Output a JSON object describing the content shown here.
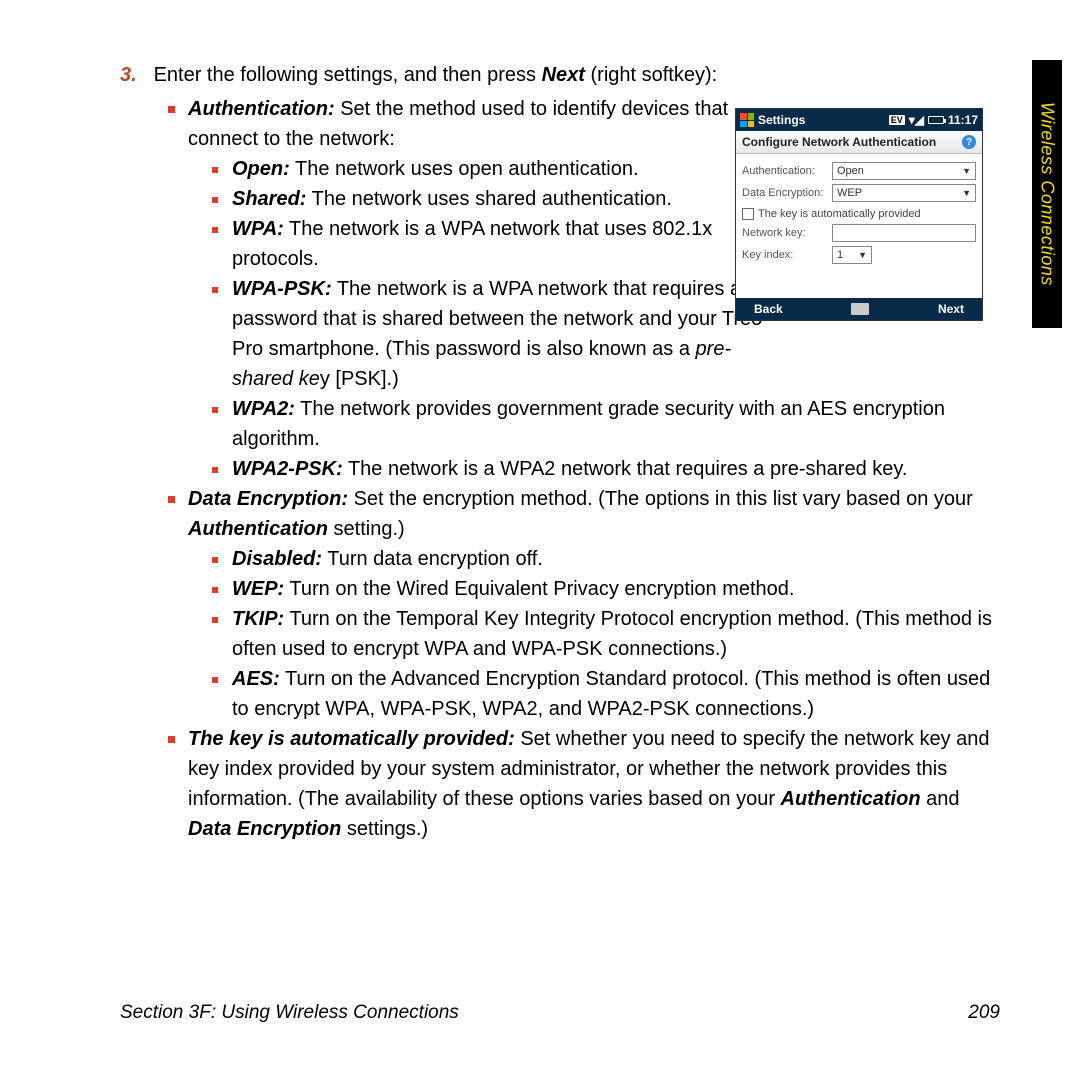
{
  "sideTab": "Wireless Connections",
  "step": {
    "num": "3.",
    "text_a": "Enter the following settings, and then press ",
    "text_b": "Next",
    "text_c": " (right softkey):"
  },
  "auth": {
    "label": "Authentication:",
    "desc": " Set the method used to identify devices that connect to the network:",
    "open_l": "Open:",
    "open_t": " The network uses open authentication.",
    "shared_l": "Shared:",
    "shared_t": " The network uses shared authentication.",
    "wpa_l": "WPA:",
    "wpa_t": " The network is a WPA network that uses 802.1x protocols.",
    "wpapsk_l": "WPA-PSK:",
    "wpapsk_t1": " The network is a WPA network that requires a password that is shared between the network and your Treo Pro smartphone. (This password is also known as a ",
    "wpapsk_i": "pre-shared ke",
    "wpapsk_t2": "y [PSK].)",
    "wpa2_l": "WPA2:",
    "wpa2_t": " The network provides government grade security with an AES encryption algorithm.",
    "wpa2psk_l": "WPA2-PSK:",
    "wpa2psk_t": " The network is a WPA2 network that requires a pre-shared key."
  },
  "enc": {
    "label": "Data Encryption:",
    "desc1": " Set the encryption method. (The options in this list vary based on your ",
    "desc_i": "Authentication",
    "desc2": " setting.)",
    "disabled_l": "Disabled:",
    "disabled_t": " Turn data encryption off.",
    "wep_l": "WEP:",
    "wep_t": " Turn on the Wired Equivalent Privacy encryption method.",
    "tkip_l": "TKIP:",
    "tkip_t": " Turn on the Temporal Key Integrity Protocol encryption method. (This method is often used to encrypt WPA and WPA-PSK connections.)",
    "aes_l": "AES:",
    "aes_t": " Turn on the Advanced Encryption Standard protocol. (This method is often used to encrypt WPA, WPA-PSK, WPA2, and WPA2-PSK connections.)"
  },
  "key": {
    "label": "The key is automatically provided:",
    "t1": " Set whether you need to specify the network key and key index provided by your system administrator, or whether the network provides this information. (The availability of these options varies based on your ",
    "i1": "Authentication",
    "t2": " and ",
    "i2": "Data Encryption",
    "t3": " settings.)"
  },
  "footer": {
    "section": "Section 3F: Using Wireless Connections",
    "page": "209"
  },
  "shot": {
    "statusTitle": "Settings",
    "ev": "EV",
    "time": "11:17",
    "windowTitle": "Configure Network Authentication",
    "authLabel": "Authentication:",
    "authValue": "Open",
    "encLabel": "Data Encryption:",
    "encValue": "WEP",
    "autoKey": "The key is automatically provided",
    "netKeyLabel": "Network key:",
    "keyIndexLabel": "Key index:",
    "keyIndexValue": "1",
    "back": "Back",
    "next": "Next"
  }
}
